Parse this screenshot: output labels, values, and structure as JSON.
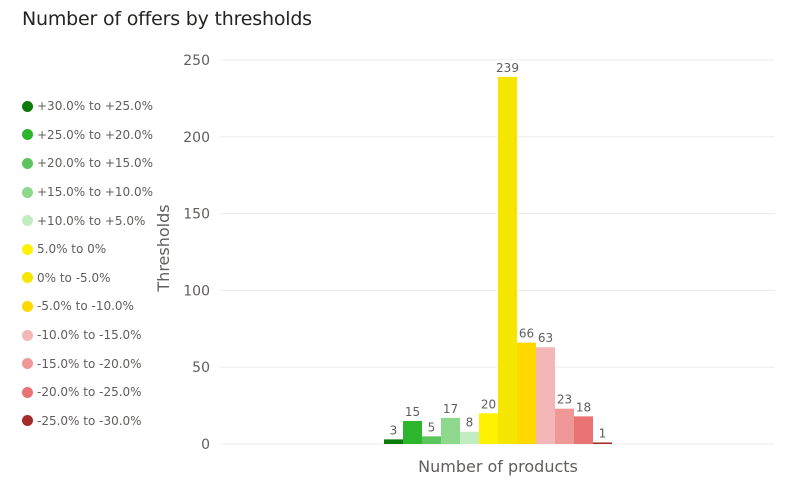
{
  "title": "Number of offers by thresholds",
  "chart_data": {
    "type": "bar",
    "title": "Number of offers by thresholds",
    "xlabel": "Number of products",
    "ylabel": "Thresholds",
    "ylim": [
      0,
      250
    ],
    "yticks": [
      0,
      50,
      100,
      150,
      200,
      250
    ],
    "grid": true,
    "legend_position": "left",
    "categories": [
      "Number of products"
    ],
    "series": [
      {
        "name": "+30.0% to +25.0%",
        "values": [
          3
        ],
        "color": "#0a7a0a"
      },
      {
        "name": "+25.0% to +20.0%",
        "values": [
          15
        ],
        "color": "#2db52d"
      },
      {
        "name": "+20.0% to +15.0%",
        "values": [
          5
        ],
        "color": "#5cc45c"
      },
      {
        "name": "+15.0% to +10.0%",
        "values": [
          17
        ],
        "color": "#8ed88e"
      },
      {
        "name": "+10.0% to +5.0%",
        "values": [
          8
        ],
        "color": "#c2ecc2"
      },
      {
        "name": "5.0% to 0%",
        "values": [
          20
        ],
        "color": "#fff200"
      },
      {
        "name": "0% to -5.0%",
        "values": [
          239
        ],
        "color": "#f5e600"
      },
      {
        "name": "-5.0% to -10.0%",
        "values": [
          66
        ],
        "color": "#ffd800"
      },
      {
        "name": "-10.0% to -15.0%",
        "values": [
          63
        ],
        "color": "#f4b6b6"
      },
      {
        "name": "-15.0% to -20.0%",
        "values": [
          23
        ],
        "color": "#ee9898"
      },
      {
        "name": "-20.0% to -25.0%",
        "values": [
          18
        ],
        "color": "#e97272"
      },
      {
        "name": "-25.0% to -30.0%",
        "values": [
          1
        ],
        "color": "#a52a2a"
      }
    ]
  }
}
